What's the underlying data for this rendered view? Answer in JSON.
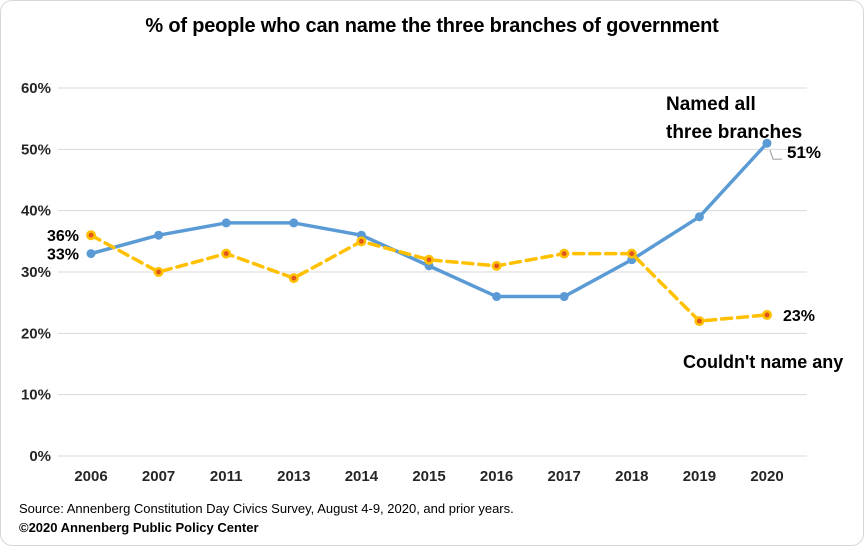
{
  "card": {
    "title": "% of people who can name the three branches of government",
    "source_line1": "Source: Annenberg Constitution Day Civics Survey, August 4-9, 2020, and prior years.",
    "source_line2": "©2020 Annenberg Public Policy Center"
  },
  "chart_data": {
    "type": "line",
    "title": "% of people who can name the three branches of government",
    "categories": [
      "2006",
      "2007",
      "2011",
      "2013",
      "2014",
      "2015",
      "2016",
      "2017",
      "2018",
      "2019",
      "2020"
    ],
    "series": [
      {
        "name": "Named all three branches",
        "color": "#5B9BD5",
        "line_style": "solid",
        "values": [
          33,
          36,
          38,
          38,
          36,
          31,
          26,
          26,
          32,
          39,
          51
        ]
      },
      {
        "name": "Couldn't name any",
        "color": "#FFC000",
        "line_style": "dashed",
        "marker_center_color": "#E2541B",
        "values": [
          36,
          30,
          33,
          29,
          35,
          32,
          31,
          33,
          33,
          22,
          23
        ]
      }
    ],
    "ylim": [
      0,
      60
    ],
    "ytick_labels": [
      "0%",
      "10%",
      "20%",
      "30%",
      "40%",
      "50%",
      "60%"
    ],
    "grid": true,
    "grid_color": "#D9D9D9",
    "axis_label_color": "#262626",
    "annotations": [
      {
        "id": "orange-start-label",
        "text": "36%"
      },
      {
        "id": "blue-start-label",
        "text": "33%"
      },
      {
        "id": "blue-end-label",
        "text": "51%"
      },
      {
        "id": "orange-end-label",
        "text": "23%"
      },
      {
        "id": "blue-series-label",
        "text": "Named all\nthree branches"
      },
      {
        "id": "orange-series-label",
        "text": "Couldn't name any"
      }
    ]
  }
}
